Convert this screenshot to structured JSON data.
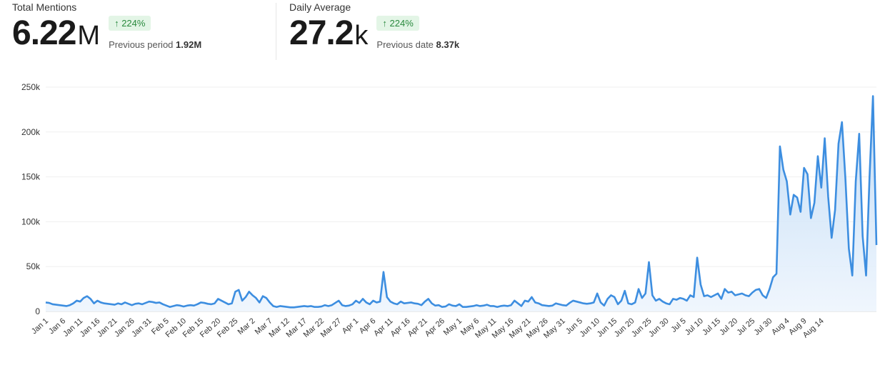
{
  "stats": [
    {
      "label": "Total Mentions",
      "value": "6.22",
      "unit": "M",
      "change": "224%",
      "change_icon": "arrow-up-icon",
      "prev_label": "Previous period",
      "prev_value": "1.92M"
    },
    {
      "label": "Daily Average",
      "value": "27.2",
      "unit": "k",
      "change": "224%",
      "change_icon": "arrow-up-icon",
      "prev_label": "Previous date",
      "prev_value": "8.37k"
    }
  ],
  "colors": {
    "line": "#3d8ee0",
    "fill_top": "#bcd9f5",
    "fill_bottom": "#eef5fd",
    "badge_bg": "#e3f5e6",
    "badge_text": "#2a8a3e"
  },
  "chart_data": {
    "type": "area",
    "ylim": [
      0,
      250000
    ],
    "yticks": [
      0,
      50000,
      100000,
      150000,
      200000,
      250000
    ],
    "ytick_labels": [
      "0",
      "50k",
      "100k",
      "150k",
      "200k",
      "250k"
    ],
    "xtick_labels": [
      "Jan 1",
      "Jan 6",
      "Jan 11",
      "Jan 16",
      "Jan 21",
      "Jan 26",
      "Jan 31",
      "Feb 5",
      "Feb 10",
      "Feb 15",
      "Feb 20",
      "Feb 25",
      "Mar 2",
      "Mar 7",
      "Mar 12",
      "Mar 17",
      "Mar 22",
      "Mar 27",
      "Apr 1",
      "Apr 6",
      "Apr 11",
      "Apr 16",
      "Apr 21",
      "Apr 26",
      "May 1",
      "May 6",
      "May 11",
      "May 16",
      "May 21",
      "May 26",
      "May 31",
      "Jun 5",
      "Jun 10",
      "Jun 15",
      "Jun 20",
      "Jun 25",
      "Jun 30",
      "Jul 5",
      "Jul 10",
      "Jul 15",
      "Jul 20",
      "Jul 25",
      "Jul 30",
      "Aug 4",
      "Aug 9",
      "Aug 14"
    ],
    "grid": true,
    "series": [
      {
        "values": [
          10000,
          9500,
          8000,
          7500,
          7000,
          6500,
          6000,
          7000,
          9000,
          12000,
          11000,
          15000,
          17000,
          14000,
          9000,
          12000,
          10000,
          9000,
          8500,
          8000,
          7500,
          9000,
          8000,
          10000,
          8500,
          7000,
          8500,
          9000,
          8000,
          9500,
          11000,
          10500,
          9500,
          10000,
          8000,
          6500,
          5000,
          6000,
          7000,
          6500,
          5500,
          6500,
          7000,
          6500,
          8000,
          10000,
          9500,
          8500,
          8000,
          9000,
          14000,
          12000,
          10000,
          8000,
          9000,
          22000,
          24000,
          12000,
          16000,
          22000,
          18000,
          15000,
          10000,
          17000,
          15000,
          10000,
          6000,
          5000,
          6000,
          5500,
          5000,
          4500,
          4500,
          5000,
          5500,
          6000,
          5500,
          6000,
          5000,
          5000,
          5500,
          7000,
          6000,
          7000,
          9500,
          12000,
          7000,
          6000,
          6500,
          8000,
          12000,
          9500,
          14000,
          10000,
          8000,
          12000,
          10000,
          11000,
          44000,
          16000,
          11000,
          9000,
          8000,
          11000,
          9000,
          9500,
          10000,
          9000,
          8500,
          7000,
          11000,
          14000,
          9000,
          6500,
          7000,
          5000,
          5500,
          8000,
          6500,
          6000,
          8000,
          5000,
          5000,
          5500,
          6000,
          7000,
          6000,
          6500,
          7500,
          6000,
          6000,
          5000,
          6000,
          6500,
          6000,
          7000,
          12000,
          9000,
          6000,
          12000,
          11000,
          16000,
          10000,
          9000,
          7000,
          6500,
          6000,
          6500,
          9000,
          8000,
          7000,
          6500,
          9500,
          12000,
          11000,
          10000,
          9000,
          8500,
          9000,
          10000,
          20000,
          10000,
          6500,
          14000,
          18000,
          16000,
          8000,
          12000,
          23000,
          9000,
          8000,
          10000,
          25000,
          15000,
          20000,
          55000,
          18000,
          12000,
          14000,
          11000,
          9000,
          8000,
          14000,
          13000,
          15000,
          14000,
          12000,
          18000,
          16000,
          60000,
          30000,
          17000,
          18000,
          16000,
          18000,
          20000,
          14000,
          25000,
          21000,
          22000,
          18000,
          19000,
          20000,
          18000,
          17000,
          21000,
          24000,
          25000,
          18000,
          15000,
          25000,
          38000,
          42000,
          184000,
          158000,
          145000,
          108000,
          130000,
          127000,
          111000,
          160000,
          153000,
          104000,
          121000,
          173000,
          138000,
          193000,
          128000,
          82000,
          113000,
          187000,
          211000,
          148000,
          70000,
          40000,
          145000,
          198000,
          84000,
          40000,
          150000,
          240000,
          74000
        ]
      }
    ]
  }
}
